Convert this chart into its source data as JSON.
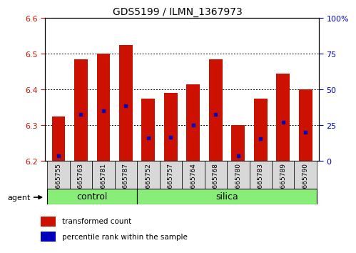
{
  "title": "GDS5199 / ILMN_1367973",
  "samples": [
    "GSM665755",
    "GSM665763",
    "GSM665781",
    "GSM665787",
    "GSM665752",
    "GSM665757",
    "GSM665764",
    "GSM665768",
    "GSM665780",
    "GSM665783",
    "GSM665789",
    "GSM665790"
  ],
  "bar_values": [
    6.325,
    6.485,
    6.5,
    6.525,
    6.375,
    6.39,
    6.415,
    6.485,
    6.3,
    6.375,
    6.445,
    6.4
  ],
  "percentile_values": [
    6.215,
    6.33,
    6.34,
    6.355,
    6.265,
    6.267,
    6.3,
    6.33,
    6.215,
    6.262,
    6.308,
    6.28
  ],
  "ylim": [
    6.2,
    6.6
  ],
  "yticks_left": [
    6.2,
    6.3,
    6.4,
    6.5,
    6.6
  ],
  "bar_color": "#cc1100",
  "percentile_color": "#0000bb",
  "tick_label_color_left": "#cc1100",
  "tick_label_color_right": "#0000bb",
  "group_labels": [
    "control",
    "silica"
  ],
  "group_color": "#88ee77",
  "agent_label": "agent",
  "bar_width": 0.6,
  "base_value": 6.2,
  "n_control": 4,
  "legend_items": [
    {
      "label": "transformed count",
      "color": "#cc1100"
    },
    {
      "label": "percentile rank within the sample",
      "color": "#0000bb"
    }
  ]
}
